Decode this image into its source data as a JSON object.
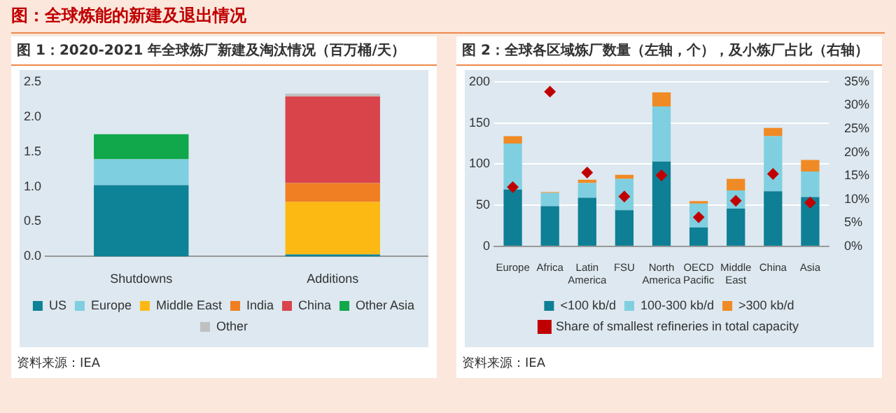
{
  "chart_data": [
    {
      "type": "other",
      "title": "图：全球炼能的新建及退出情况"
    },
    {
      "type": "bar",
      "title": "图 1：2020-2021 年全球炼厂新建及淘汰情况（百万桶/天）",
      "categories": [
        "Shutdowns",
        "Additions"
      ],
      "stacked": true,
      "ylim": [
        0,
        2.5
      ],
      "yticks": [
        {
          "value": 0,
          "label": "0.0"
        },
        {
          "value": 0.5,
          "label": "0.5"
        },
        {
          "value": 1,
          "label": "1.0"
        },
        {
          "value": 1.5,
          "label": "1.5"
        },
        {
          "value": 2,
          "label": "2.0"
        },
        {
          "value": 2.5,
          "label": "2.5"
        }
      ],
      "grid": false,
      "legend": "bottom",
      "annotations": [
        "资料来源：IEA"
      ],
      "series": [
        {
          "name": "US",
          "color": "#0e8296",
          "values": [
            1.02,
            0.03
          ]
        },
        {
          "name": "Europe",
          "color": "#7ecfe0",
          "values": [
            0.37,
            0
          ]
        },
        {
          "name": "Middle East",
          "color": "#fdb913",
          "values": [
            0,
            0.75
          ]
        },
        {
          "name": "India",
          "color": "#ef7f22",
          "values": [
            0,
            0.27
          ]
        },
        {
          "name": "China",
          "color": "#d9434a",
          "values": [
            0,
            1.24
          ]
        },
        {
          "name": "Other Asia",
          "color": "#10a84a",
          "values": [
            0.36,
            0
          ]
        },
        {
          "name": "Other",
          "color": "#c0c0c0",
          "values": [
            0,
            0.04
          ]
        }
      ]
    },
    {
      "type": "bar",
      "title": "图 2：全球各区域炼厂数量（左轴，个），及小炼厂占比（右轴）",
      "categories": [
        "Europe",
        "Africa",
        "Latin America",
        "FSU",
        "North America",
        "OECD Pacific",
        "Middle East",
        "China",
        "Asia"
      ],
      "stacked": true,
      "ylim": [
        0,
        200
      ],
      "yticks": [
        0,
        50,
        100,
        150,
        200
      ],
      "y2lim": [
        0,
        35
      ],
      "y2ticks": [
        {
          "value": 0,
          "label": "0%"
        },
        {
          "value": 5,
          "label": "5%"
        },
        {
          "value": 10,
          "label": "10%"
        },
        {
          "value": 15,
          "label": "15%"
        },
        {
          "value": 20,
          "label": "20%"
        },
        {
          "value": 25,
          "label": "25%"
        },
        {
          "value": 30,
          "label": "30%"
        },
        {
          "value": 35,
          "label": "35%"
        }
      ],
      "grid": "y",
      "legend": "bottom",
      "annotations": [
        "资料来源：IEA"
      ],
      "series": [
        {
          "name": "<100 kb/d",
          "color": "#0e7f95",
          "values": [
            69,
            49,
            59,
            44,
            103,
            23,
            46,
            67,
            60
          ]
        },
        {
          "name": "100-300 kb/d",
          "color": "#7fcfe0",
          "values": [
            56,
            16,
            18,
            38,
            67,
            29,
            22,
            67,
            31
          ]
        },
        {
          "name": ">300 kb/d",
          "color": "#f08a24",
          "values": [
            9,
            1,
            4,
            5,
            17,
            3,
            14,
            10,
            14
          ]
        },
        {
          "name": "Share of smallest refineries in total capacity",
          "type": "scatter",
          "axis": "y2",
          "marker": "diamond",
          "color": "#c00000",
          "values": [
            12.6,
            32.9,
            15.7,
            10.6,
            15.1,
            6.2,
            9.7,
            15.4,
            9.3
          ]
        }
      ]
    }
  ]
}
